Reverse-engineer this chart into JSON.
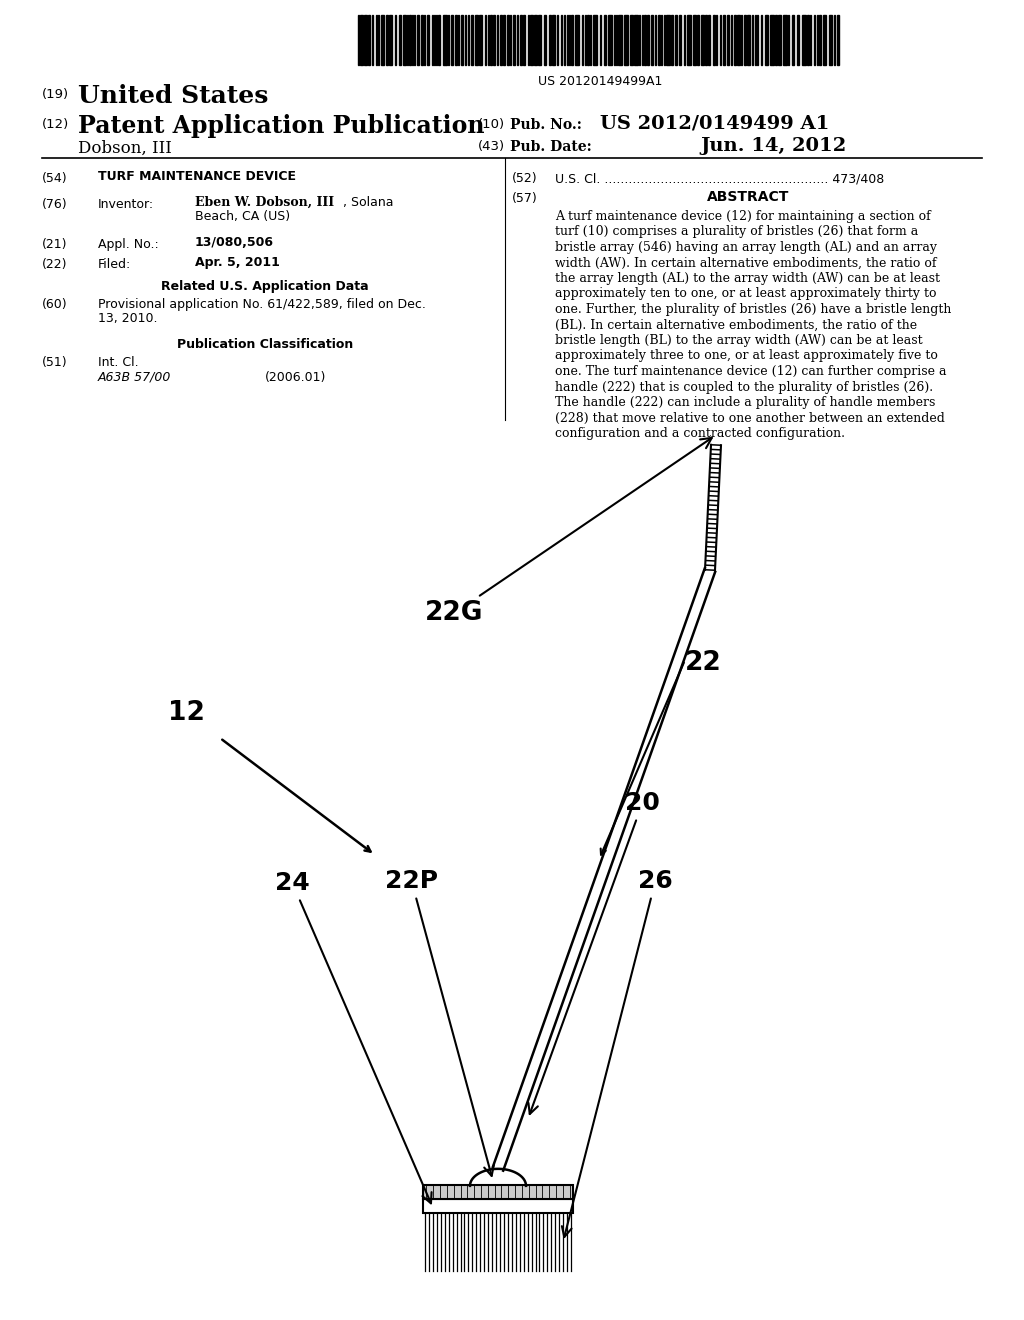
{
  "bg_color": "#ffffff",
  "barcode_text": "US 20120149499A1",
  "abstract_lines": [
    "A turf maintenance device (12) for maintaining a section of",
    "turf (10) comprises a plurality of bristles (26) that form a",
    "bristle array (546) having an array length (AL) and an array",
    "width (AW). In certain alternative embodiments, the ratio of",
    "the array length (AL) to the array width (AW) can be at least",
    "approximately ten to one, or at least approximately thirty to",
    "one. Further, the plurality of bristles (26) have a bristle length",
    "(BL). In certain alternative embodiments, the ratio of the",
    "bristle length (BL) to the array width (AW) can be at least",
    "approximately three to one, or at least approximately five to",
    "one. The turf maintenance device (12) can further comprise a",
    "handle (222) that is coupled to the plurality of bristles (26).",
    "The handle (222) can include a plurality of handle members",
    "(228) that move relative to one another between an extended",
    "configuration and a contracted configuration."
  ]
}
